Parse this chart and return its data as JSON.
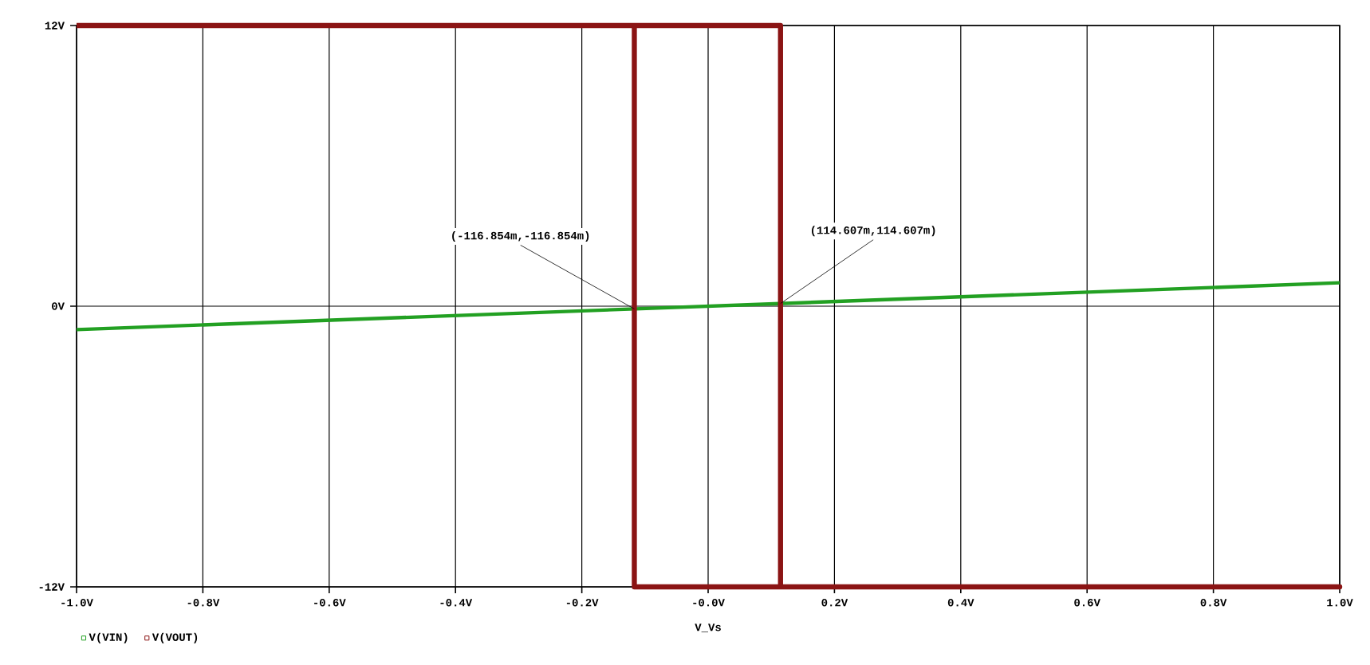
{
  "chart_data": {
    "type": "line",
    "xlabel": "V_Vs",
    "xlim": [
      -1.0,
      1.0
    ],
    "ylim": [
      -12,
      12
    ],
    "xticks": [
      {
        "value": -1.0,
        "label": "-1.0V"
      },
      {
        "value": -0.8,
        "label": "-0.8V"
      },
      {
        "value": -0.6,
        "label": "-0.6V"
      },
      {
        "value": -0.4,
        "label": "-0.4V"
      },
      {
        "value": -0.2,
        "label": "-0.2V"
      },
      {
        "value": 0.0,
        "label": "-0.0V"
      },
      {
        "value": 0.2,
        "label": "0.2V"
      },
      {
        "value": 0.4,
        "label": "0.4V"
      },
      {
        "value": 0.6,
        "label": "0.6V"
      },
      {
        "value": 0.8,
        "label": "0.8V"
      },
      {
        "value": 1.0,
        "label": "1.0V"
      }
    ],
    "yticks": [
      {
        "value": -12,
        "label": "-12V"
      },
      {
        "value": 0,
        "label": "0V"
      },
      {
        "value": 12,
        "label": "12V"
      }
    ],
    "grid": true,
    "legend": "bottom left",
    "series": [
      {
        "name": "V(VIN)",
        "color": "#22a022",
        "x": [
          -1.0,
          1.0
        ],
        "values": [
          -1.0,
          1.0
        ]
      },
      {
        "name": "V(VOUT)",
        "color": "#8b1414",
        "x": [
          -1.0,
          0.114607,
          0.114607,
          1.0,
          -0.116854,
          -0.116854
        ],
        "values": [
          12,
          12,
          -12,
          -12,
          -12,
          12
        ]
      }
    ],
    "annotations": [
      {
        "text": "(-116.854m,-116.854m)",
        "x": -0.116854,
        "y": -0.116854
      },
      {
        "text": "(114.607m,114.607m)",
        "x": 0.114607,
        "y": 0.114607
      }
    ]
  }
}
